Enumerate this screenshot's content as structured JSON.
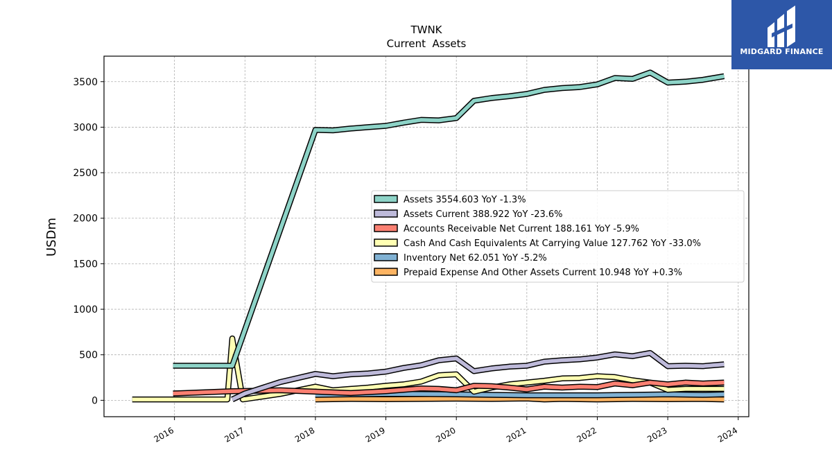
{
  "chart_data": {
    "type": "line",
    "title": "TWNK",
    "subtitle": "Current  Assets",
    "ylabel": "USDm",
    "xlabel": "",
    "x_ticks": [
      "2016",
      "2017",
      "2018",
      "2019",
      "2020",
      "2021",
      "2022",
      "2023",
      "2024"
    ],
    "y_ticks": [
      "0",
      "500",
      "1000",
      "1500",
      "2000",
      "2500",
      "3000",
      "3500"
    ],
    "xlim": [
      2015.0,
      2024.15
    ],
    "ylim": [
      -180,
      3780
    ],
    "grid": true,
    "legend_position": "center-right",
    "series": [
      {
        "name": "Assets  3554.603 YoY -1.3%",
        "color": "#8dd3c7",
        "points": [
          [
            2015.98,
            380
          ],
          [
            2016.73,
            380
          ],
          [
            2016.82,
            380
          ],
          [
            2018.0,
            2970
          ],
          [
            2018.25,
            2965
          ],
          [
            2018.5,
            2985
          ],
          [
            2018.75,
            3000
          ],
          [
            2019.0,
            3015
          ],
          [
            2019.25,
            3050
          ],
          [
            2019.5,
            3080
          ],
          [
            2019.75,
            3075
          ],
          [
            2020.0,
            3100
          ],
          [
            2020.25,
            3290
          ],
          [
            2020.5,
            3320
          ],
          [
            2020.75,
            3340
          ],
          [
            2021.0,
            3365
          ],
          [
            2021.25,
            3410
          ],
          [
            2021.5,
            3430
          ],
          [
            2021.75,
            3440
          ],
          [
            2022.0,
            3470
          ],
          [
            2022.25,
            3540
          ],
          [
            2022.5,
            3530
          ],
          [
            2022.75,
            3600
          ],
          [
            2023.0,
            3490
          ],
          [
            2023.25,
            3500
          ],
          [
            2023.5,
            3520
          ],
          [
            2023.8,
            3560
          ]
        ]
      },
      {
        "name": "Assets Current  388.922 YoY -23.6%",
        "color": "#bebada",
        "points": [
          [
            2016.82,
            10
          ],
          [
            2017.0,
            75
          ],
          [
            2017.5,
            200
          ],
          [
            2018.0,
            290
          ],
          [
            2018.25,
            265
          ],
          [
            2018.5,
            285
          ],
          [
            2018.75,
            295
          ],
          [
            2019.0,
            315
          ],
          [
            2019.25,
            355
          ],
          [
            2019.5,
            385
          ],
          [
            2019.75,
            440
          ],
          [
            2020.0,
            460
          ],
          [
            2020.25,
            320
          ],
          [
            2020.5,
            350
          ],
          [
            2020.75,
            370
          ],
          [
            2021.0,
            380
          ],
          [
            2021.25,
            425
          ],
          [
            2021.5,
            440
          ],
          [
            2021.75,
            450
          ],
          [
            2022.0,
            470
          ],
          [
            2022.25,
            505
          ],
          [
            2022.5,
            485
          ],
          [
            2022.75,
            520
          ],
          [
            2023.0,
            375
          ],
          [
            2023.25,
            380
          ],
          [
            2023.5,
            375
          ],
          [
            2023.8,
            395
          ]
        ]
      },
      {
        "name": "Accounts Receivable Net Current  188.161 YoY -5.9%",
        "color": "#fb8072",
        "points": [
          [
            2015.98,
            75
          ],
          [
            2016.82,
            100
          ],
          [
            2017.5,
            110
          ],
          [
            2018.0,
            95
          ],
          [
            2018.5,
            80
          ],
          [
            2019.0,
            100
          ],
          [
            2019.5,
            130
          ],
          [
            2019.75,
            125
          ],
          [
            2020.0,
            110
          ],
          [
            2020.25,
            160
          ],
          [
            2020.5,
            155
          ],
          [
            2020.75,
            140
          ],
          [
            2021.0,
            120
          ],
          [
            2021.25,
            150
          ],
          [
            2021.5,
            140
          ],
          [
            2021.75,
            150
          ],
          [
            2022.0,
            145
          ],
          [
            2022.25,
            185
          ],
          [
            2022.5,
            165
          ],
          [
            2022.75,
            195
          ],
          [
            2023.0,
            175
          ],
          [
            2023.25,
            195
          ],
          [
            2023.5,
            185
          ],
          [
            2023.8,
            195
          ]
        ]
      },
      {
        "name": "Cash And Cash Equivalents At Carrying Value  127.762 YoY -33.0%",
        "color": "#ffffb3",
        "points": [
          [
            2015.4,
            10
          ],
          [
            2016.75,
            10
          ],
          [
            2016.82,
            680
          ],
          [
            2016.97,
            10
          ],
          [
            2017.5,
            70
          ],
          [
            2018.0,
            150
          ],
          [
            2018.25,
            110
          ],
          [
            2018.5,
            125
          ],
          [
            2018.75,
            140
          ],
          [
            2019.0,
            160
          ],
          [
            2019.25,
            175
          ],
          [
            2019.5,
            205
          ],
          [
            2019.75,
            275
          ],
          [
            2020.0,
            285
          ],
          [
            2020.25,
            95
          ],
          [
            2020.5,
            140
          ],
          [
            2020.75,
            175
          ],
          [
            2021.0,
            195
          ],
          [
            2021.25,
            215
          ],
          [
            2021.5,
            240
          ],
          [
            2021.75,
            245
          ],
          [
            2022.0,
            265
          ],
          [
            2022.25,
            255
          ],
          [
            2022.5,
            220
          ],
          [
            2022.75,
            195
          ],
          [
            2023.0,
            115
          ],
          [
            2023.25,
            125
          ],
          [
            2023.5,
            125
          ],
          [
            2023.8,
            125
          ]
        ]
      },
      {
        "name": "Inventory Net  62.051 YoY -5.2%",
        "color": "#80b1d3",
        "points": [
          [
            2018.0,
            60
          ],
          [
            2018.5,
            65
          ],
          [
            2019.0,
            70
          ],
          [
            2019.5,
            70
          ],
          [
            2020.0,
            65
          ],
          [
            2020.5,
            60
          ],
          [
            2021.0,
            55
          ],
          [
            2021.5,
            55
          ],
          [
            2022.0,
            55
          ],
          [
            2022.5,
            60
          ],
          [
            2023.0,
            65
          ],
          [
            2023.5,
            60
          ],
          [
            2023.8,
            65
          ]
        ]
      },
      {
        "name": "Prepaid Expense And Other Assets Current  10.948 YoY +0.3%",
        "color": "#fdb462",
        "points": [
          [
            2018.0,
            10
          ],
          [
            2018.5,
            15
          ],
          [
            2019.0,
            12
          ],
          [
            2019.5,
            15
          ],
          [
            2020.0,
            18
          ],
          [
            2020.5,
            15
          ],
          [
            2021.0,
            20
          ],
          [
            2021.25,
            10
          ],
          [
            2021.5,
            15
          ],
          [
            2022.0,
            10
          ],
          [
            2022.5,
            15
          ],
          [
            2023.0,
            12
          ],
          [
            2023.5,
            15
          ],
          [
            2023.8,
            10
          ]
        ]
      }
    ]
  },
  "logo": {
    "text": "MIDGARD FINANCE"
  }
}
